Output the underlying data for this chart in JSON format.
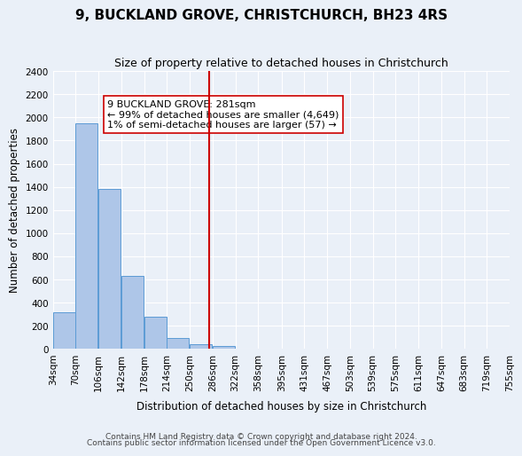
{
  "title": "9, BUCKLAND GROVE, CHRISTCHURCH, BH23 4RS",
  "subtitle": "Size of property relative to detached houses in Christchurch",
  "xlabel": "Distribution of detached houses by size in Christchurch",
  "ylabel": "Number of detached properties",
  "bin_labels": [
    "34sqm",
    "70sqm",
    "106sqm",
    "142sqm",
    "178sqm",
    "214sqm",
    "250sqm",
    "286sqm",
    "322sqm",
    "358sqm",
    "395sqm",
    "431sqm",
    "467sqm",
    "503sqm",
    "539sqm",
    "575sqm",
    "611sqm",
    "647sqm",
    "683sqm",
    "719sqm",
    "755sqm"
  ],
  "bin_edges": [
    34,
    70,
    106,
    142,
    178,
    214,
    250,
    286,
    322,
    358,
    395,
    431,
    467,
    503,
    539,
    575,
    611,
    647,
    683,
    719,
    755
  ],
  "bar_heights": [
    320,
    1950,
    1380,
    630,
    280,
    95,
    45,
    25,
    0,
    0,
    0,
    0,
    0,
    0,
    0,
    0,
    0,
    0,
    0,
    0
  ],
  "bar_color": "#aec6e8",
  "bar_edge_color": "#5b9bd5",
  "vline_x": 281,
  "vline_color": "#cc0000",
  "annotation_text": "9 BUCKLAND GROVE: 281sqm\n← 99% of detached houses are smaller (4,649)\n1% of semi-detached houses are larger (57) →",
  "annotation_box_color": "#ffffff",
  "annotation_box_edge_color": "#cc0000",
  "ylim": [
    0,
    2400
  ],
  "yticks": [
    0,
    200,
    400,
    600,
    800,
    1000,
    1200,
    1400,
    1600,
    1800,
    2000,
    2200,
    2400
  ],
  "footer1": "Contains HM Land Registry data © Crown copyright and database right 2024.",
  "footer2": "Contains public sector information licensed under the Open Government Licence v3.0.",
  "background_color": "#eaf0f8",
  "plot_bg_color": "#eaf0f8",
  "grid_color": "#ffffff",
  "title_fontsize": 11,
  "subtitle_fontsize": 9,
  "axis_label_fontsize": 8.5,
  "tick_fontsize": 7.5,
  "annotation_fontsize": 8,
  "footer_fontsize": 6.5
}
